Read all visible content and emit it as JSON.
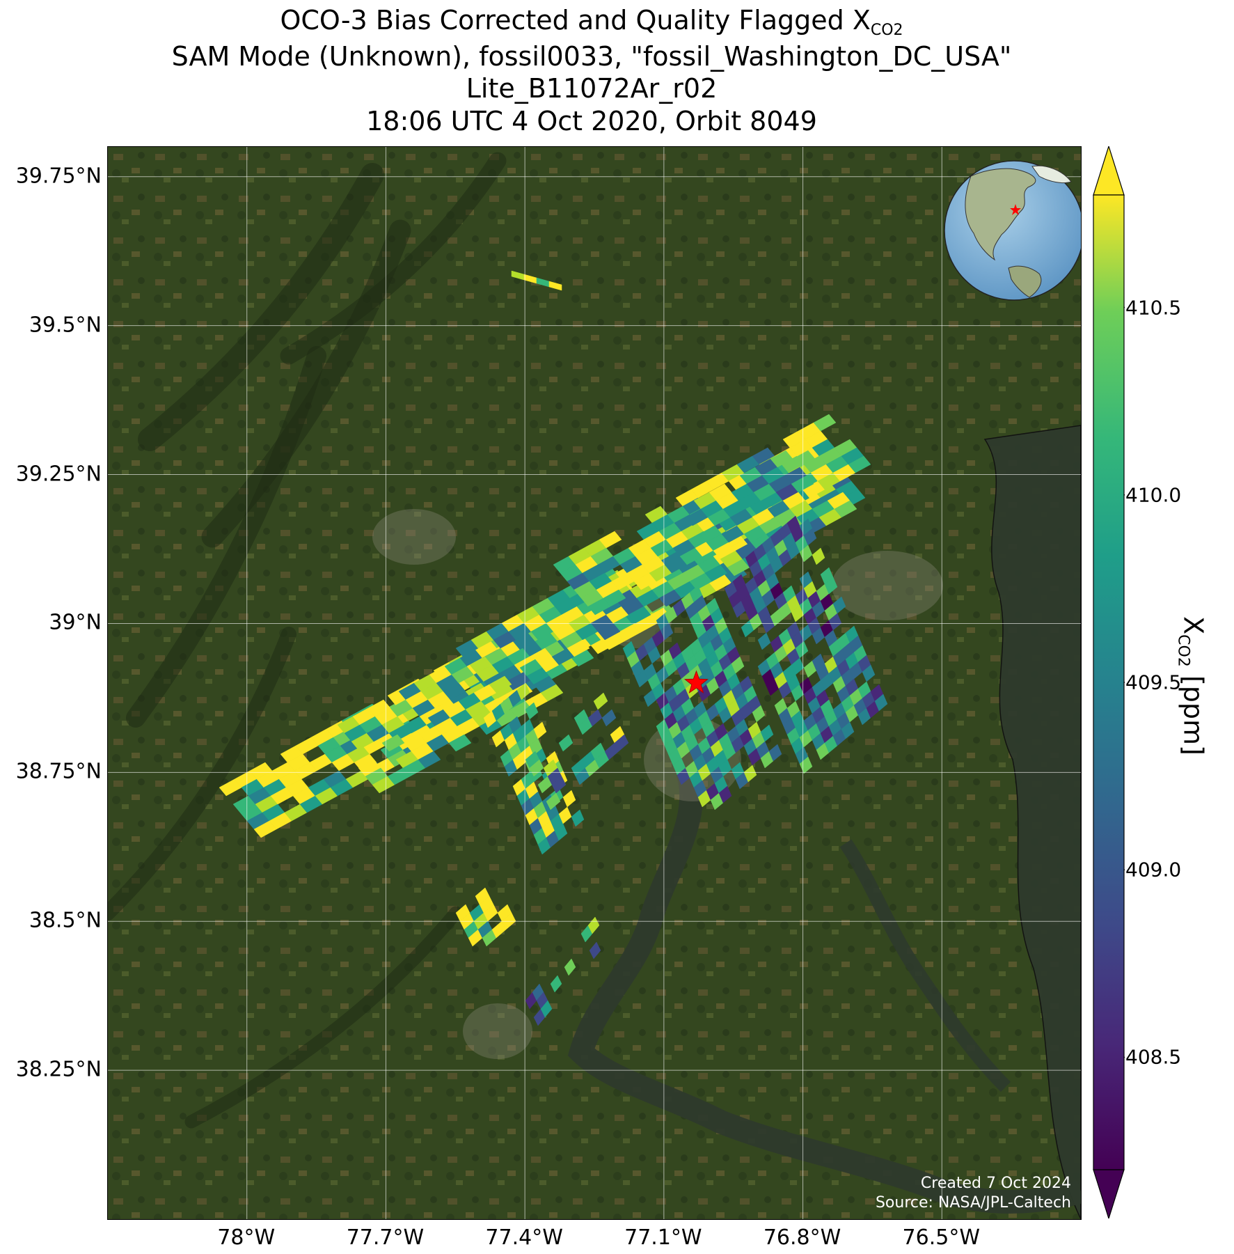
{
  "title": {
    "line1_prefix": "OCO-3 Bias Corrected and Quality Flagged X",
    "line1_sub": "CO2",
    "line2": "SAM Mode (Unknown), fossil0033, \"fossil_Washington_DC_USA\"",
    "line3": "Lite_B11072Ar_r02",
    "line4": "18:06 UTC 4 Oct 2020, Orbit 8049"
  },
  "map": {
    "lat_ticks": [
      "39.75°N",
      "39.5°N",
      "39.25°N",
      "39°N",
      "38.75°N",
      "38.5°N",
      "38.25°N"
    ],
    "lon_ticks": [
      "78°W",
      "77.7°W",
      "77.4°W",
      "77.1°W",
      "76.8°W",
      "76.5°W"
    ],
    "lat_values": [
      39.75,
      39.5,
      39.25,
      39.0,
      38.75,
      38.5,
      38.25
    ],
    "lon_values": [
      -78.0,
      -77.7,
      -77.4,
      -77.1,
      -76.8,
      -76.5
    ],
    "lat_range": [
      38.0,
      39.8
    ],
    "lon_range": [
      -78.3,
      -76.2
    ],
    "target": {
      "name": "fossil_Washington_DC_USA",
      "lat": 38.9,
      "lon": -77.03,
      "marker": "red-star"
    },
    "basemap": "satellite imagery",
    "credit_line1": "Created 7 Oct 2024",
    "credit_line2": "Source: NASA/JPL-Caltech",
    "inset": "orthographic globe with red star at target location"
  },
  "colorbar": {
    "label_prefix": "X",
    "label_sub": "CO2",
    "label_suffix": " [ppm]",
    "colormap": "viridis",
    "range": [
      408.2,
      410.8
    ],
    "extend": "both",
    "ticks": [
      408.5,
      409.0,
      409.5,
      410.0,
      410.5
    ],
    "tick_labels": [
      "408.5",
      "409.0",
      "409.5",
      "410.0",
      "410.5"
    ]
  },
  "colors": {
    "target_star": "#ff0000",
    "gridline": "#ffffff",
    "land": "#3a4d24",
    "water": "#2e3a2c",
    "ocean_globe": "#7fb2d9"
  }
}
